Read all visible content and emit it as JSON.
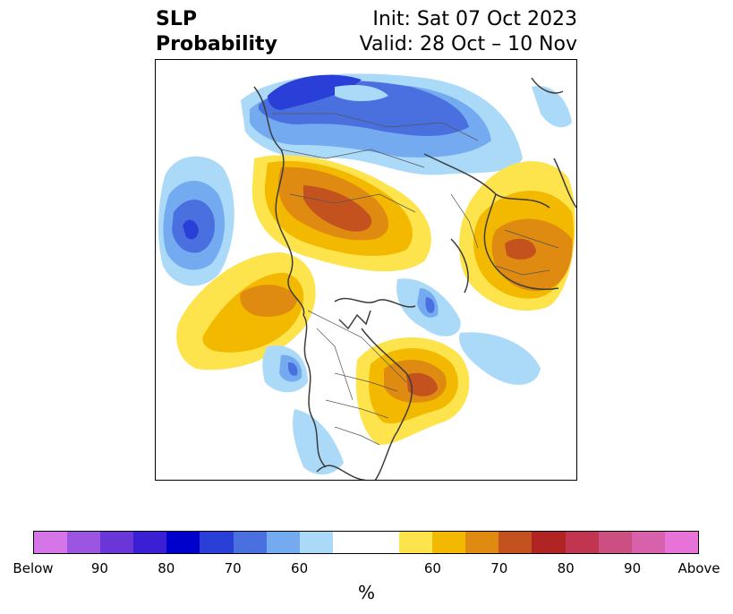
{
  "title": {
    "left_line1": "SLP",
    "left_line2": "Probability",
    "right_line1": "Init: Sat 07 Oct 2023",
    "right_line2": "Valid: 28 Oct – 10 Nov"
  },
  "colors": {
    "below": [
      "#d575e8",
      "#9b55e0",
      "#6b36d8",
      "#3a1fd4",
      "#0000cc",
      "#2a3fd8",
      "#4a70e0",
      "#74aaf0",
      "#abdaf8"
    ],
    "neutral": "#ffffff",
    "above": [
      "#fde34c",
      "#f3b800",
      "#df8a10",
      "#c4521e",
      "#b02424",
      "#c23550",
      "#cc4f82",
      "#d861ac",
      "#e772d8"
    ]
  },
  "colorbar": {
    "labels": [
      "Below",
      "90",
      "80",
      "70",
      "60",
      "60",
      "70",
      "80",
      "90",
      "Above"
    ],
    "unit": "%"
  }
}
